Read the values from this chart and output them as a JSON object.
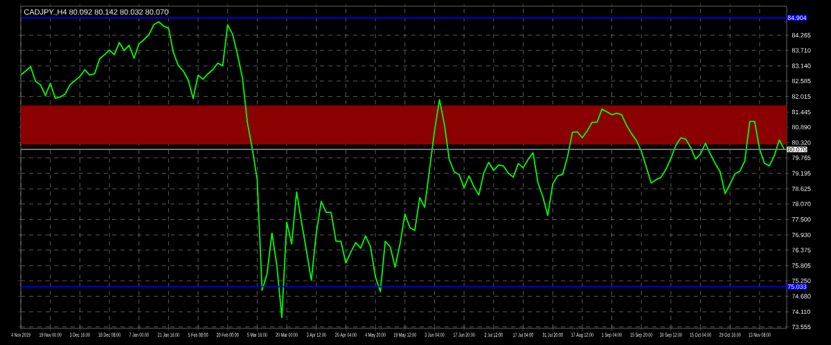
{
  "chart_data": {
    "type": "line",
    "title": "CADJPY.,H4  80.092 80.142 80.032 80.070",
    "categories": [
      "4 Nov 2019",
      null,
      null,
      null,
      null,
      null,
      "19 Nov 00:00",
      null,
      null,
      null,
      null,
      null,
      "3 Dec 16:00",
      null,
      null,
      null,
      null,
      null,
      "18 Dec 08:00",
      null,
      null,
      null,
      null,
      null,
      "7 Jan 00:00",
      null,
      null,
      null,
      null,
      null,
      "21 Jan 16:00",
      null,
      null,
      null,
      null,
      null,
      "5 Feb 08:00",
      null,
      null,
      null,
      null,
      null,
      "20 Feb 00:00",
      null,
      null,
      null,
      null,
      null,
      "5 Mar 16:00",
      null,
      null,
      null,
      null,
      null,
      "20 Mar 00:00",
      null,
      null,
      null,
      null,
      null,
      "3 Apr 12:00",
      null,
      null,
      null,
      null,
      null,
      "20 Apr 04:00",
      null,
      null,
      null,
      null,
      null,
      "4 May 20:00",
      null,
      null,
      null,
      null,
      null,
      "19 May 12:00",
      null,
      null,
      null,
      null,
      null,
      "3 Jun 04:00",
      null,
      null,
      null,
      null,
      null,
      "17 Jun 20:00",
      null,
      null,
      null,
      null,
      null,
      "2 Jul 12:00",
      null,
      null,
      null,
      null,
      null,
      "17 Jul 04:00",
      null,
      null,
      null,
      null,
      null,
      "31 Jul 20:00",
      null,
      null,
      null,
      null,
      null,
      "17 Aug 12:00",
      null,
      null,
      null,
      null,
      null,
      "1 Sep 04:00",
      null,
      null,
      null,
      null,
      null,
      "15 Sep 20:00",
      null,
      null,
      null,
      null,
      null,
      "30 Sep 12:00",
      null,
      null,
      null,
      null,
      null,
      "15 Oct 04:00",
      null,
      null,
      null,
      null,
      null,
      "29 Oct 16:00",
      null,
      null,
      null,
      null,
      null,
      "13 Nov 08:00",
      null,
      null,
      null,
      null,
      null
    ],
    "ylim": [
      73.5,
      85.33
    ],
    "yticks": [
      {
        "value": 73.555,
        "label": "73.555"
      },
      {
        "value": 74.11,
        "label": "74.110"
      },
      {
        "value": 74.68,
        "label": "74.680"
      },
      {
        "value": 75.25,
        "label": "75.250"
      },
      {
        "value": 75.805,
        "label": "75.805"
      },
      {
        "value": 76.375,
        "label": "76.375"
      },
      {
        "value": 76.93,
        "label": "76.930"
      },
      {
        "value": 77.5,
        "label": "77.500"
      },
      {
        "value": 78.07,
        "label": "78.070"
      },
      {
        "value": 78.625,
        "label": "78.625"
      },
      {
        "value": 79.195,
        "label": "79.195"
      },
      {
        "value": 79.765,
        "label": "79.765"
      },
      {
        "value": 80.32,
        "label": "80.320"
      },
      {
        "value": 80.89,
        "label": "80.890"
      },
      {
        "value": 81.445,
        "label": "81.445"
      },
      {
        "value": 82.015,
        "label": "82.015"
      },
      {
        "value": 82.585,
        "label": "82.585"
      },
      {
        "value": 83.14,
        "label": "83.140"
      },
      {
        "value": 83.71,
        "label": "83.710"
      },
      {
        "value": 84.265,
        "label": "84.265"
      }
    ],
    "grid": true,
    "line_style": "solid",
    "ref_lines": [
      {
        "axis": "y",
        "value": 84.904,
        "label": "84.904",
        "color": "#0000ff"
      },
      {
        "axis": "y",
        "value": 75.033,
        "label": "75.033",
        "color": "#0000ff"
      },
      {
        "axis": "y",
        "value": 80.07,
        "label": "80.070",
        "color": "#808080"
      }
    ],
    "bands": [
      {
        "axis": "y",
        "from": 80.25,
        "to": 81.69,
        "color": "#8b0000"
      }
    ],
    "series": [
      {
        "color": "#00ff00",
        "values": [
          82.81,
          82.95,
          83.11,
          82.57,
          82.45,
          82.05,
          82.5,
          81.95,
          82.0,
          82.1,
          82.45,
          82.6,
          82.75,
          83.0,
          82.8,
          82.85,
          83.4,
          83.55,
          83.72,
          83.55,
          84.0,
          83.7,
          83.9,
          83.42,
          83.95,
          84.1,
          84.28,
          84.65,
          84.76,
          84.6,
          84.52,
          83.62,
          83.15,
          82.95,
          82.62,
          81.94,
          82.8,
          82.65,
          82.85,
          83.0,
          83.24,
          83.15,
          84.65,
          84.3,
          83.56,
          82.7,
          81.07,
          80.1,
          78.96,
          74.9,
          75.5,
          77.0,
          75.8,
          73.9,
          77.4,
          76.6,
          78.51,
          77.4,
          76.35,
          75.27,
          77.0,
          78.16,
          77.76,
          77.76,
          76.7,
          76.7,
          75.9,
          76.3,
          76.65,
          76.45,
          76.9,
          76.5,
          75.4,
          74.85,
          76.7,
          76.5,
          75.75,
          76.6,
          77.7,
          77.2,
          77.1,
          78.3,
          77.95,
          79.35,
          80.75,
          81.9,
          81.0,
          79.7,
          79.25,
          79.15,
          78.66,
          79.1,
          78.7,
          78.4,
          79.2,
          79.6,
          79.3,
          79.5,
          79.46,
          79.2,
          79.05,
          79.55,
          79.4,
          79.7,
          79.95,
          78.85,
          78.33,
          77.65,
          78.8,
          79.1,
          79.15,
          79.8,
          80.7,
          80.72,
          80.5,
          80.75,
          81.07,
          81.07,
          81.55,
          81.45,
          81.35,
          81.4,
          81.35,
          80.95,
          80.65,
          80.4,
          80.0,
          79.42,
          78.84,
          78.96,
          79.05,
          79.35,
          79.75,
          80.22,
          80.5,
          80.45,
          80.15,
          79.72,
          79.9,
          80.3,
          79.9,
          79.55,
          79.25,
          78.45,
          78.8,
          79.18,
          79.27,
          79.65,
          81.1,
          81.1,
          80.08,
          79.56,
          79.47,
          79.85,
          80.42,
          80.07
        ]
      }
    ]
  }
}
